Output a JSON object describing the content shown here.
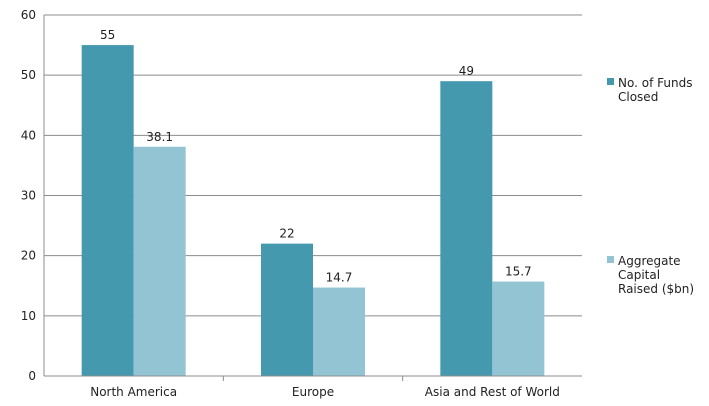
{
  "chart_data": {
    "type": "bar",
    "title": "",
    "xlabel": "",
    "ylabel": "",
    "categories": [
      "North America",
      "Europe",
      "Asia and Rest of World"
    ],
    "series": [
      {
        "name": "No. of Funds Closed",
        "name_lines": [
          "No. of Funds",
          "Closed"
        ],
        "color": "#4499AF",
        "values": [
          55,
          22,
          49
        ],
        "labels": [
          "55",
          "22",
          "49"
        ]
      },
      {
        "name": "Aggregate Capital Raised ($bn)",
        "name_lines": [
          "Aggregate",
          "Capital",
          "Raised ($bn)"
        ],
        "color": "#93C4D4",
        "values": [
          38.1,
          14.7,
          15.7
        ],
        "labels": [
          "38.1",
          "14.7",
          "15.7"
        ]
      }
    ],
    "ylim": [
      0,
      60
    ],
    "yticks": [
      0,
      10,
      20,
      30,
      40,
      50,
      60
    ],
    "grid": true,
    "legend_position": "right"
  }
}
